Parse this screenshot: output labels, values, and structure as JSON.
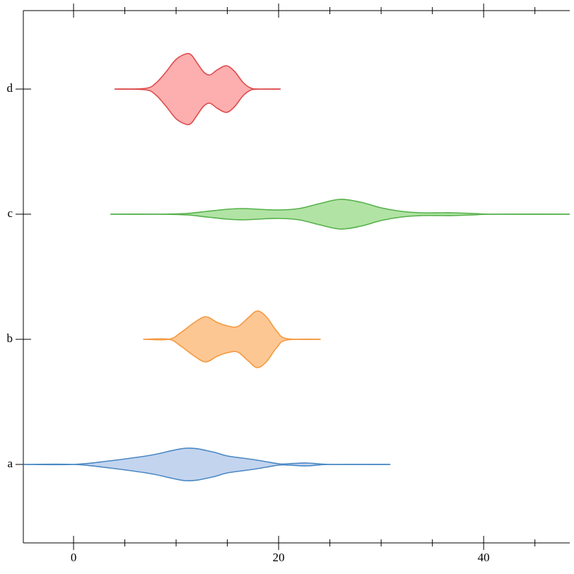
{
  "chart_data": {
    "type": "violin",
    "categories": [
      "a",
      "b",
      "c",
      "d"
    ],
    "xlim": [
      -4.9,
      48.4
    ],
    "xticks": [
      0,
      20,
      40
    ],
    "xminorticks": [
      5,
      10,
      15,
      25,
      30,
      35,
      45
    ],
    "series": [
      {
        "name": "a",
        "color": "#4a88c4",
        "fill": "#c3d4ee",
        "x": [
          -4.9,
          0,
          3.5,
          7.5,
          11,
          13.5,
          15,
          17.5,
          20,
          21,
          22.8,
          25,
          30.9
        ],
        "density": [
          0,
          0,
          5,
          13,
          23,
          18,
          12,
          7,
          1,
          1,
          2,
          0,
          0
        ]
      },
      {
        "name": "b",
        "color": "#f4993f",
        "fill": "#fdc794",
        "x": [
          6.8,
          9.3,
          10.5,
          11.8,
          12.9,
          14,
          15,
          16,
          17,
          17.9,
          18.8,
          19.8,
          20.8,
          24.1
        ],
        "density": [
          0,
          0,
          10,
          24,
          32,
          24,
          19,
          18,
          30,
          40,
          32,
          12,
          1,
          0
        ]
      },
      {
        "name": "c",
        "color": "#55b14a",
        "fill": "#b1e3a4",
        "x": [
          3.6,
          8,
          11,
          13,
          15,
          16.5,
          18,
          20,
          22,
          24,
          26,
          28,
          30,
          32,
          34,
          36,
          37,
          39,
          41,
          48.4
        ],
        "density": [
          0,
          0,
          1,
          4,
          7,
          8,
          7,
          6,
          8,
          15,
          21,
          17,
          9,
          4,
          2,
          2,
          2,
          1,
          0,
          0
        ]
      },
      {
        "name": "d",
        "color": "#dd4c4c",
        "fill": "#fdaeae",
        "x": [
          4,
          7,
          8,
          9,
          10,
          11,
          11.5,
          12,
          12.7,
          13.3,
          14,
          14.9,
          15.7,
          16.5,
          17.2,
          18,
          20.2
        ],
        "density": [
          0,
          1,
          8,
          24,
          42,
          50,
          48,
          38,
          24,
          20,
          27,
          33,
          25,
          10,
          2,
          0,
          0
        ]
      }
    ]
  }
}
